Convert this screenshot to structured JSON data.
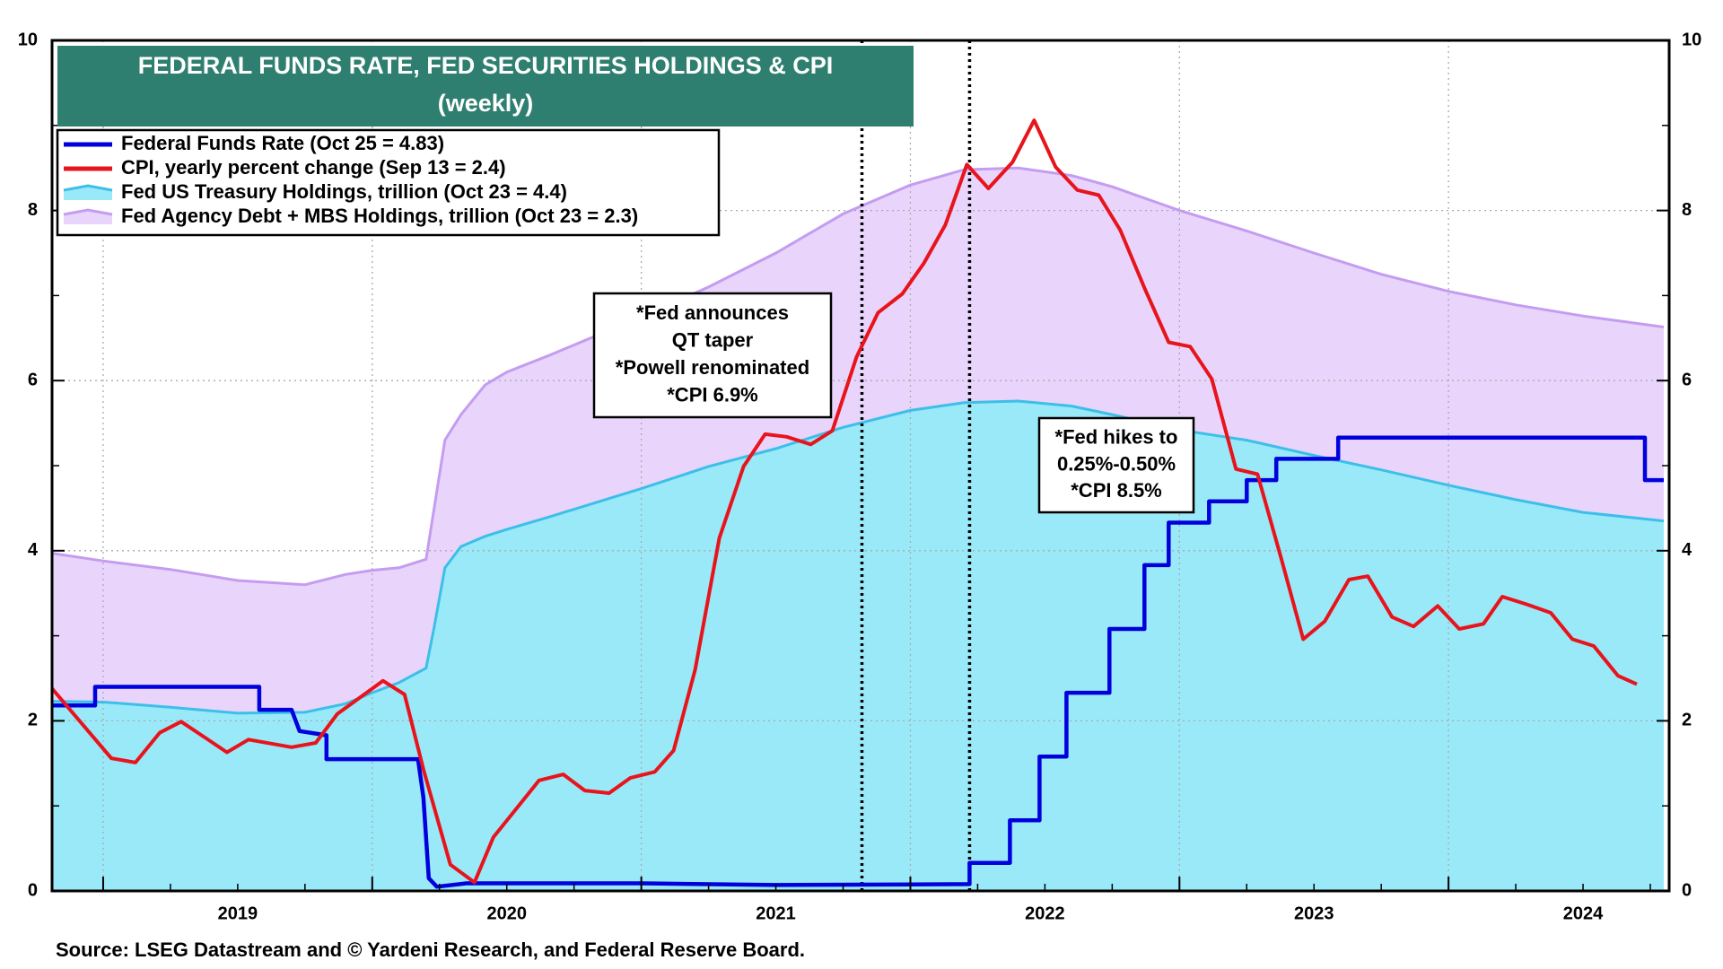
{
  "chart_data": {
    "type": "line",
    "title": "FEDERAL FUNDS RATE, FED SECURITIES HOLDINGS & CPI",
    "subtitle": "(weekly)",
    "source": "Source: LSEG Datastream and © Yardeni Research, and Federal Reserve Board.",
    "xlim": [
      2018.81,
      2024.82
    ],
    "xticks": [
      2019,
      2020,
      2021,
      2022,
      2023,
      2024
    ],
    "ylim": [
      0,
      10
    ],
    "yticks": [
      0,
      2,
      4,
      6,
      8,
      10
    ],
    "y2lim": [
      0,
      10
    ],
    "y2ticks": [
      0,
      2,
      4,
      6,
      8,
      10
    ],
    "grid": true,
    "legend": "upper left",
    "vlines": [
      2021.82,
      2022.22
    ],
    "annotations": [
      {
        "lines": [
          "*Fed announces",
          "QT taper",
          "*Powell renominated",
          "*CPI 6.9%"
        ]
      },
      {
        "lines": [
          "*Fed hikes to",
          "0.25%-0.50%",
          "*CPI 8.5%"
        ]
      }
    ],
    "series": [
      {
        "name": "Federal Funds Rate (Oct 25 = 4.83)",
        "kind": "line",
        "color": "#0000dd",
        "x": [
          2018.81,
          2018.97,
          2018.97,
          2019.58,
          2019.58,
          2019.7,
          2019.73,
          2019.83,
          2019.83,
          2020.17,
          2020.19,
          2020.21,
          2020.24,
          2020.35,
          2021.0,
          2021.5,
          2022.22,
          2022.22,
          2022.37,
          2022.37,
          2022.48,
          2022.48,
          2022.58,
          2022.58,
          2022.74,
          2022.74,
          2022.87,
          2022.87,
          2022.96,
          2022.96,
          2023.11,
          2023.11,
          2023.25,
          2023.25,
          2023.36,
          2023.36,
          2023.59,
          2023.59,
          2024.73,
          2024.73,
          2024.8
        ],
        "values": [
          2.18,
          2.18,
          2.4,
          2.4,
          2.13,
          2.13,
          1.88,
          1.83,
          1.55,
          1.55,
          1.1,
          0.15,
          0.05,
          0.09,
          0.09,
          0.07,
          0.08,
          0.33,
          0.33,
          0.83,
          0.83,
          1.58,
          1.58,
          2.33,
          2.33,
          3.08,
          3.08,
          3.83,
          3.83,
          4.33,
          4.33,
          4.58,
          4.58,
          4.83,
          4.83,
          5.08,
          5.08,
          5.33,
          5.33,
          4.83,
          4.83
        ]
      },
      {
        "name": "CPI, yearly percent change (Sep 13 = 2.4)",
        "kind": "line",
        "color": "#e8141c",
        "x": [
          2018.81,
          2019.03,
          2019.12,
          2019.21,
          2019.29,
          2019.38,
          2019.46,
          2019.54,
          2019.7,
          2019.79,
          2019.87,
          2020.04,
          2020.12,
          2020.19,
          2020.29,
          2020.38,
          2020.45,
          2020.62,
          2020.71,
          2020.79,
          2020.88,
          2020.96,
          2021.05,
          2021.12,
          2021.2,
          2021.29,
          2021.38,
          2021.46,
          2021.54,
          2021.63,
          2021.71,
          2021.8,
          2021.88,
          2021.97,
          2022.05,
          2022.13,
          2022.21,
          2022.29,
          2022.38,
          2022.46,
          2022.54,
          2022.62,
          2022.7,
          2022.78,
          2022.87,
          2022.96,
          2023.04,
          2023.12,
          2023.21,
          2023.29,
          2023.38,
          2023.46,
          2023.54,
          2023.63,
          2023.7,
          2023.79,
          2023.87,
          2023.96,
          2024.04,
          2024.13,
          2024.2,
          2024.29,
          2024.38,
          2024.46,
          2024.54,
          2024.63,
          2024.7
        ],
        "values": [
          2.38,
          1.56,
          1.51,
          1.86,
          1.99,
          1.8,
          1.63,
          1.78,
          1.69,
          1.74,
          2.08,
          2.47,
          2.31,
          1.43,
          0.31,
          0.1,
          0.63,
          1.3,
          1.37,
          1.18,
          1.15,
          1.33,
          1.4,
          1.65,
          2.6,
          4.15,
          4.99,
          5.37,
          5.34,
          5.25,
          5.41,
          6.28,
          6.8,
          7.02,
          7.38,
          7.83,
          8.54,
          8.26,
          8.57,
          9.06,
          8.51,
          8.24,
          8.18,
          7.77,
          7.09,
          6.45,
          6.4,
          6.02,
          4.96,
          4.9,
          3.89,
          2.96,
          3.17,
          3.66,
          3.7,
          3.22,
          3.11,
          3.35,
          3.08,
          3.14,
          3.46,
          3.37,
          3.27,
          2.96,
          2.88,
          2.53,
          2.43
        ]
      },
      {
        "name": "Fed US Treasury Holdings, trillion (Oct 23 = 4.4)",
        "kind": "area",
        "color": "#9ae9f9",
        "line_color": "#3cbfe8",
        "x": [
          2018.81,
          2019.0,
          2019.25,
          2019.5,
          2019.75,
          2019.9,
          2020.0,
          2020.1,
          2020.2,
          2020.23,
          2020.27,
          2020.33,
          2020.42,
          2020.5,
          2020.66,
          2021.0,
          2021.25,
          2021.5,
          2021.75,
          2022.0,
          2022.2,
          2022.4,
          2022.6,
          2022.75,
          2023.0,
          2023.25,
          2023.5,
          2023.75,
          2024.0,
          2024.25,
          2024.5,
          2024.8
        ],
        "values": [
          2.23,
          2.22,
          2.16,
          2.09,
          2.1,
          2.2,
          2.33,
          2.45,
          2.62,
          3.1,
          3.8,
          4.05,
          4.17,
          4.25,
          4.4,
          4.73,
          4.99,
          5.2,
          5.45,
          5.65,
          5.74,
          5.76,
          5.7,
          5.6,
          5.42,
          5.3,
          5.12,
          4.95,
          4.77,
          4.6,
          4.45,
          4.35
        ]
      },
      {
        "name": "Fed Agency Debt + MBS Holdings, trillion (Oct 23 = 2.3)",
        "kind": "area",
        "color": "#e9d5fc",
        "line_color": "#c49cf0",
        "x": [
          2018.81,
          2019.0,
          2019.25,
          2019.5,
          2019.75,
          2019.9,
          2020.0,
          2020.1,
          2020.2,
          2020.23,
          2020.27,
          2020.33,
          2020.42,
          2020.5,
          2020.66,
          2021.0,
          2021.25,
          2021.5,
          2021.75,
          2022.0,
          2022.2,
          2022.4,
          2022.6,
          2022.75,
          2023.0,
          2023.25,
          2023.5,
          2023.75,
          2024.0,
          2024.25,
          2024.5,
          2024.8
        ],
        "values": [
          1.74,
          1.66,
          1.62,
          1.56,
          1.5,
          1.52,
          1.44,
          1.35,
          1.28,
          1.4,
          1.5,
          1.55,
          1.78,
          1.85,
          1.9,
          2.02,
          2.11,
          2.3,
          2.51,
          2.65,
          2.74,
          2.74,
          2.71,
          2.68,
          2.58,
          2.46,
          2.38,
          2.3,
          2.28,
          2.29,
          2.31,
          2.28
        ]
      }
    ]
  }
}
